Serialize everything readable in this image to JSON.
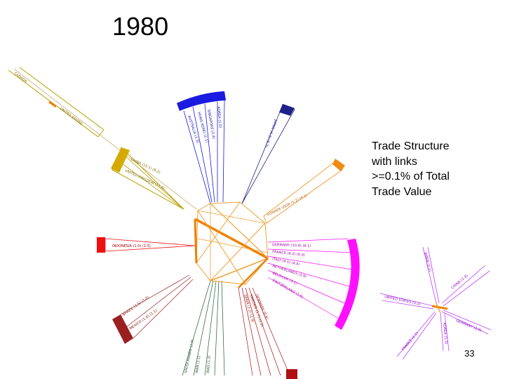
{
  "slide": {
    "title": "1980",
    "caption_lines": [
      "Trade Structure",
      "with links",
      ">=0.1% of Total",
      "Trade Value"
    ],
    "page_number": "33"
  },
  "colors": {
    "link": "#f0a030",
    "link_strong": "#f08000",
    "clusters": [
      "#b8a000",
      "#1a1ae0",
      "#20208a",
      "#f08a10",
      "#ee1010",
      "#ff10ff",
      "#9a2020",
      "#205a30",
      "#b01010",
      "#c040ff"
    ]
  },
  "diagram": {
    "description_labels": "country labels rendered illegibly small in the original"
  }
}
